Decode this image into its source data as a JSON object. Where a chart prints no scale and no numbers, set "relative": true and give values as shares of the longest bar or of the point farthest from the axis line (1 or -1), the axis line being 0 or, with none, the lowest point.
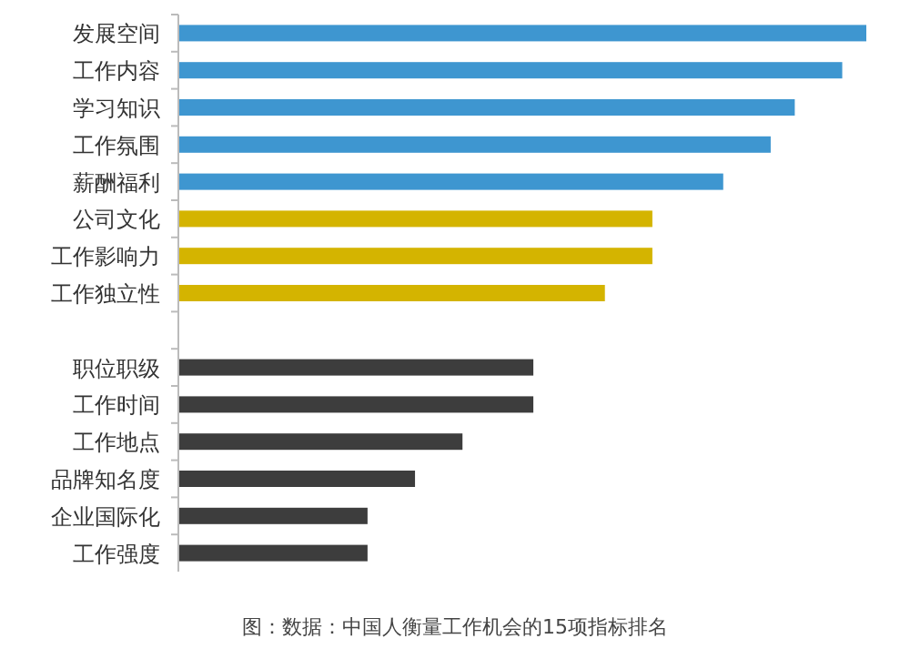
{
  "chart_data": {
    "type": "bar",
    "orientation": "horizontal",
    "relative": true,
    "categories": [
      "发展空间",
      "工作内容",
      "学习知识",
      "工作氛围",
      "薪酬福利",
      "公司文化",
      "工作影响力",
      "工作独立性",
      null,
      "职位职级",
      "工作时间",
      "工作地点",
      "品牌知名度",
      "企业国际化",
      "工作强度"
    ],
    "values": [
      1,
      0.965,
      0.896,
      0.861,
      0.792,
      0.689,
      0.689,
      0.62,
      null,
      0.516,
      0.516,
      0.413,
      0.344,
      0.275,
      0.275
    ],
    "colors": [
      "#3e96d0",
      "#3e96d0",
      "#3e96d0",
      "#3e96d0",
      "#3e96d0",
      "#d4b400",
      "#d4b400",
      "#d4b400",
      "#3d3d3d",
      "#3d3d3d",
      "#3d3d3d",
      "#3d3d3d",
      "#3d3d3d",
      "#3d3d3d",
      "#3d3d3d"
    ],
    "annotations": [
      "图：数据：中国人衡量工作机会的15项指标排名"
    ]
  }
}
